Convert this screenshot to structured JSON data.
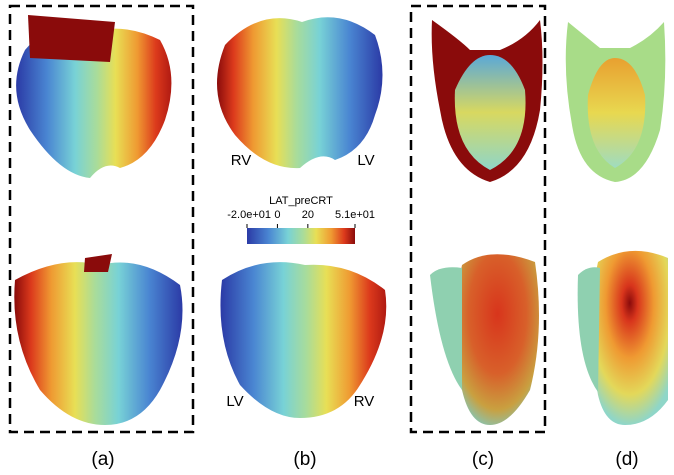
{
  "colorbar": {
    "title": "LAT_preCRT",
    "range": [
      -20,
      51
    ],
    "ticks": [
      {
        "value": -20,
        "label": "-2.0e+01"
      },
      0,
      20,
      {
        "value": 51,
        "label": "5.1e+01"
      }
    ]
  },
  "annotations": [
    "RV",
    "LV",
    "LV",
    "RV"
  ],
  "panel_labels": [
    "(a)",
    "(b)",
    "(c)",
    "(d)"
  ]
}
